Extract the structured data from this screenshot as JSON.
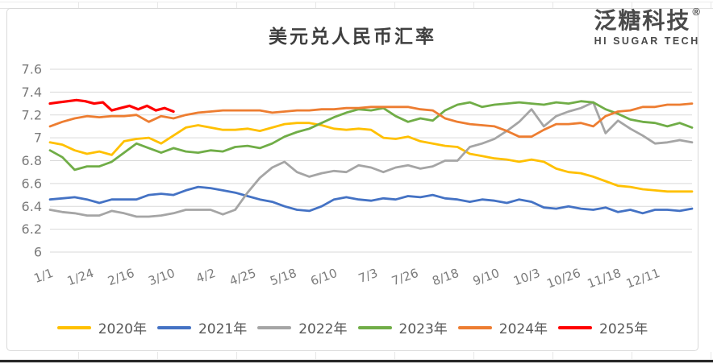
{
  "branding": {
    "logo_text": "泛糖科技",
    "logo_reg": "®",
    "logo_subtext": "HI SUGAR TECH"
  },
  "chart_data": {
    "type": "line",
    "title": "美元兑人民币汇率",
    "xlabel": "",
    "ylabel": "",
    "grid": true,
    "legend_position": "bottom",
    "ylim": [
      6,
      7.6
    ],
    "y_tick_values": [
      7.6,
      7.4,
      7.2,
      7.0,
      6.8,
      6.6,
      6.4,
      6.2,
      6.0
    ],
    "y_tick_labels": [
      "7.6",
      "7.4",
      "7.2",
      "7",
      "6.8",
      "6.6",
      "6.4",
      "6.2",
      "6"
    ],
    "x_tick_labels": [
      "1/1",
      "1/24",
      "2/16",
      "3/10",
      "4/2",
      "4/25",
      "5/18",
      "6/10",
      "7/3",
      "7/26",
      "8/18",
      "9/10",
      "10/3",
      "10/26",
      "11/18",
      "12/11"
    ],
    "x_tick_days": [
      1,
      24,
      47,
      70,
      93,
      116,
      139,
      162,
      185,
      208,
      231,
      254,
      277,
      300,
      323,
      345
    ],
    "x_domain_days": [
      1,
      365
    ],
    "series": [
      {
        "name": "2020年",
        "color": "#FFC000",
        "day_step": 7,
        "values": [
          6.96,
          6.94,
          6.89,
          6.86,
          6.88,
          6.85,
          6.97,
          6.99,
          7.0,
          6.95,
          7.02,
          7.09,
          7.11,
          7.09,
          7.07,
          7.07,
          7.08,
          7.06,
          7.09,
          7.12,
          7.13,
          7.13,
          7.11,
          7.08,
          7.07,
          7.08,
          7.07,
          7.0,
          6.99,
          7.01,
          6.97,
          6.95,
          6.93,
          6.92,
          6.86,
          6.84,
          6.82,
          6.81,
          6.79,
          6.81,
          6.79,
          6.73,
          6.7,
          6.69,
          6.66,
          6.62,
          6.58,
          6.57,
          6.55,
          6.54,
          6.53,
          6.53,
          6.53
        ]
      },
      {
        "name": "2021年",
        "color": "#4472C4",
        "day_step": 7,
        "values": [
          6.46,
          6.47,
          6.48,
          6.46,
          6.43,
          6.46,
          6.46,
          6.46,
          6.5,
          6.51,
          6.5,
          6.54,
          6.57,
          6.56,
          6.54,
          6.52,
          6.49,
          6.46,
          6.44,
          6.4,
          6.37,
          6.36,
          6.4,
          6.46,
          6.48,
          6.46,
          6.45,
          6.47,
          6.46,
          6.49,
          6.48,
          6.5,
          6.47,
          6.46,
          6.44,
          6.46,
          6.45,
          6.43,
          6.46,
          6.44,
          6.39,
          6.38,
          6.4,
          6.38,
          6.37,
          6.39,
          6.35,
          6.37,
          6.34,
          6.37,
          6.37,
          6.36,
          6.38
        ]
      },
      {
        "name": "2022年",
        "color": "#A5A5A5",
        "day_step": 7,
        "values": [
          6.37,
          6.35,
          6.34,
          6.32,
          6.32,
          6.36,
          6.34,
          6.31,
          6.31,
          6.32,
          6.34,
          6.37,
          6.37,
          6.37,
          6.33,
          6.37,
          6.52,
          6.65,
          6.74,
          6.79,
          6.7,
          6.66,
          6.69,
          6.71,
          6.7,
          6.76,
          6.74,
          6.7,
          6.74,
          6.76,
          6.73,
          6.75,
          6.8,
          6.8,
          6.92,
          6.95,
          6.99,
          7.06,
          7.14,
          7.25,
          7.1,
          7.19,
          7.23,
          7.26,
          7.31,
          7.04,
          7.15,
          7.08,
          7.02,
          6.95,
          6.96,
          6.98,
          6.96
        ]
      },
      {
        "name": "2023年",
        "color": "#70AD47",
        "day_step": 7,
        "values": [
          6.89,
          6.83,
          6.72,
          6.75,
          6.75,
          6.79,
          6.87,
          6.95,
          6.91,
          6.87,
          6.91,
          6.88,
          6.87,
          6.89,
          6.88,
          6.92,
          6.93,
          6.91,
          6.95,
          7.01,
          7.05,
          7.08,
          7.13,
          7.18,
          7.22,
          7.25,
          7.24,
          7.26,
          7.19,
          7.14,
          7.17,
          7.15,
          7.24,
          7.29,
          7.31,
          7.27,
          7.29,
          7.3,
          7.31,
          7.3,
          7.29,
          7.31,
          7.3,
          7.32,
          7.31,
          7.25,
          7.21,
          7.16,
          7.14,
          7.13,
          7.1,
          7.13,
          7.09
        ]
      },
      {
        "name": "2024年",
        "color": "#ED7D31",
        "day_step": 7,
        "values": [
          7.1,
          7.14,
          7.17,
          7.19,
          7.18,
          7.19,
          7.19,
          7.2,
          7.14,
          7.19,
          7.17,
          7.2,
          7.22,
          7.23,
          7.24,
          7.24,
          7.24,
          7.24,
          7.22,
          7.23,
          7.24,
          7.24,
          7.25,
          7.25,
          7.26,
          7.26,
          7.27,
          7.27,
          7.27,
          7.27,
          7.25,
          7.24,
          7.17,
          7.14,
          7.12,
          7.11,
          7.1,
          7.06,
          7.01,
          7.01,
          7.07,
          7.12,
          7.12,
          7.13,
          7.1,
          7.19,
          7.23,
          7.24,
          7.27,
          7.27,
          7.29,
          7.29,
          7.3
        ]
      },
      {
        "name": "2025年",
        "color": "#FF0000",
        "days": [
          1,
          6,
          11,
          16,
          21,
          26,
          31,
          36,
          41,
          46,
          51,
          56,
          61,
          66,
          71
        ],
        "values": [
          7.3,
          7.31,
          7.32,
          7.33,
          7.32,
          7.3,
          7.31,
          7.24,
          7.26,
          7.28,
          7.25,
          7.28,
          7.24,
          7.26,
          7.23
        ]
      }
    ]
  }
}
